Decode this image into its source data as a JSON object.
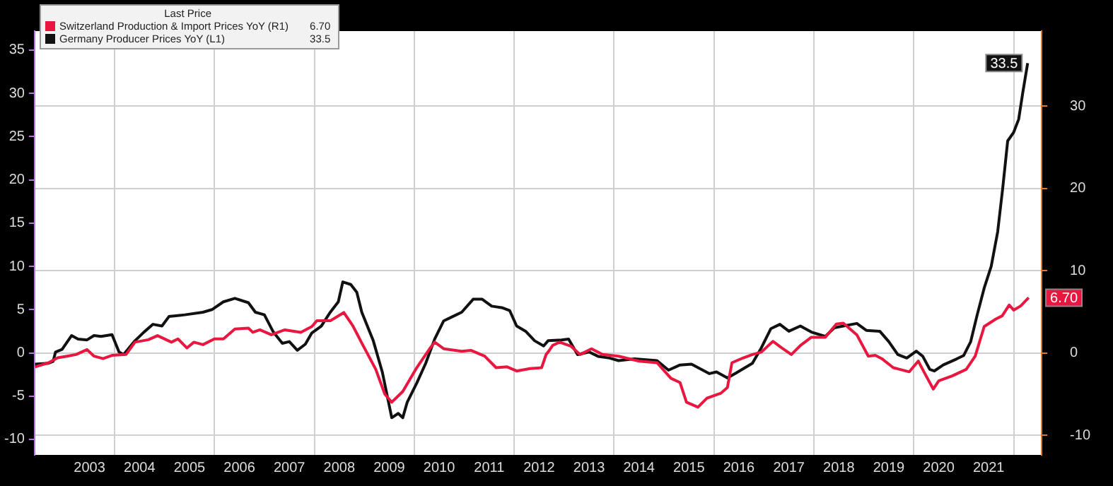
{
  "chart_data": {
    "type": "line",
    "legend_title": "Last Price",
    "legend": "top left",
    "grid": true,
    "marker": "none",
    "line_style": "solid",
    "xlim": [
      2002.4,
      2022.56
    ],
    "xticks": [
      {
        "value": 2003.5,
        "label": "2003"
      },
      {
        "value": 2004,
        "label": null
      },
      {
        "value": 2004.5,
        "label": "2004"
      },
      {
        "value": 2005.5,
        "label": "2005"
      },
      {
        "value": 2006,
        "label": null
      },
      {
        "value": 2006.5,
        "label": "2006"
      },
      {
        "value": 2007.5,
        "label": "2007"
      },
      {
        "value": 2008,
        "label": null
      },
      {
        "value": 2008.5,
        "label": "2008"
      },
      {
        "value": 2009.5,
        "label": "2009"
      },
      {
        "value": 2010,
        "label": null
      },
      {
        "value": 2010.5,
        "label": "2010"
      },
      {
        "value": 2011.5,
        "label": "2011"
      },
      {
        "value": 2012,
        "label": null
      },
      {
        "value": 2012.5,
        "label": "2012"
      },
      {
        "value": 2013.5,
        "label": "2013"
      },
      {
        "value": 2014,
        "label": null
      },
      {
        "value": 2014.5,
        "label": "2014"
      },
      {
        "value": 2015.5,
        "label": "2015"
      },
      {
        "value": 2016,
        "label": null
      },
      {
        "value": 2016.5,
        "label": "2016"
      },
      {
        "value": 2017.5,
        "label": "2017"
      },
      {
        "value": 2018,
        "label": null
      },
      {
        "value": 2018.5,
        "label": "2018"
      },
      {
        "value": 2019.5,
        "label": "2019"
      },
      {
        "value": 2020,
        "label": null
      },
      {
        "value": 2020.5,
        "label": "2020"
      },
      {
        "value": 2021.5,
        "label": "2021"
      },
      {
        "value": 2022,
        "label": null
      }
    ],
    "ylim": [
      -11.8,
      37.2
    ],
    "yticks": [
      -10,
      -5,
      0,
      5,
      10,
      15,
      20,
      25,
      30,
      35
    ],
    "y2lim": [
      -12.4,
      39.1
    ],
    "y2ticks": [
      -10,
      0,
      10,
      20,
      30
    ],
    "series": [
      {
        "name": "Switzerland Production & Import Prices YoY (R1)",
        "color": "#e8173f",
        "axis": "y2",
        "x": [
          2002.41,
          2002.68,
          2002.86,
          2003.05,
          2003.23,
          2003.45,
          2003.59,
          2003.77,
          2003.95,
          2004.23,
          2004.41,
          2004.68,
          2004.86,
          2005.14,
          2005.27,
          2005.45,
          2005.59,
          2005.77,
          2006.0,
          2006.18,
          2006.41,
          2006.68,
          2006.77,
          2006.91,
          2007.14,
          2007.41,
          2007.73,
          2007.95,
          2008.05,
          2008.32,
          2008.59,
          2008.77,
          2008.95,
          2009.23,
          2009.41,
          2009.55,
          2009.77,
          2010.05,
          2010.32,
          2010.41,
          2010.59,
          2010.95,
          2011.14,
          2011.41,
          2011.64,
          2011.86,
          2012.05,
          2012.32,
          2012.55,
          2012.64,
          2012.68,
          2012.77,
          2012.91,
          2013.14,
          2013.32,
          2013.55,
          2013.77,
          2014.09,
          2014.5,
          2014.86,
          2015.14,
          2015.32,
          2015.45,
          2015.68,
          2015.86,
          2016.14,
          2016.27,
          2016.36,
          2016.59,
          2016.77,
          2016.95,
          2017.18,
          2017.36,
          2017.55,
          2017.73,
          2017.95,
          2018.23,
          2018.45,
          2018.59,
          2018.86,
          2019.09,
          2019.23,
          2019.36,
          2019.59,
          2019.91,
          2020.09,
          2020.23,
          2020.39,
          2020.5,
          2020.77,
          2021.05,
          2021.23,
          2021.41,
          2021.64,
          2021.77,
          2021.91,
          2022.0,
          2022.14,
          2022.3
        ],
        "values": [
          -1.7,
          -1.2,
          -0.6,
          -0.4,
          -0.2,
          0.4,
          -0.4,
          -0.7,
          -0.3,
          -0.2,
          1.3,
          1.6,
          2.1,
          1.3,
          1.7,
          0.6,
          1.3,
          1.0,
          1.7,
          1.7,
          2.9,
          3.0,
          2.5,
          2.8,
          2.2,
          2.8,
          2.5,
          3.2,
          3.9,
          3.9,
          4.9,
          3.3,
          1.2,
          -2.0,
          -5.0,
          -6.0,
          -4.7,
          -1.8,
          0.6,
          1.3,
          0.5,
          0.2,
          0.3,
          -0.4,
          -1.8,
          -1.7,
          -2.2,
          -1.9,
          -1.8,
          -0.2,
          0.1,
          0.9,
          1.3,
          0.8,
          -0.2,
          0.5,
          -0.2,
          -0.4,
          -1.0,
          -1.2,
          -3.1,
          -3.6,
          -6.0,
          -6.6,
          -5.5,
          -4.9,
          -4.2,
          -1.2,
          -0.6,
          -0.2,
          0.1,
          1.4,
          0.6,
          -0.2,
          0.9,
          1.9,
          1.9,
          3.5,
          3.6,
          2.2,
          -0.4,
          -0.3,
          -0.7,
          -1.8,
          -2.3,
          -1.0,
          -2.6,
          -4.4,
          -3.4,
          -2.8,
          -2.0,
          -0.4,
          3.2,
          4.1,
          4.5,
          5.8,
          5.2,
          5.7,
          6.7
        ],
        "value_labels": [
          null,
          null,
          null,
          null,
          null,
          null,
          null,
          null,
          null,
          null,
          null,
          null,
          null,
          null,
          null,
          null,
          null,
          null,
          null,
          null,
          null,
          null,
          null,
          null,
          null,
          null,
          null,
          null,
          null,
          null,
          null,
          null,
          null,
          null,
          null,
          null,
          null,
          null,
          null,
          null,
          null,
          null,
          null,
          null,
          null,
          null,
          null,
          null,
          null,
          null,
          null,
          null,
          null,
          null,
          null,
          null,
          null,
          null,
          null,
          null,
          null,
          null,
          null,
          null,
          null,
          null,
          null,
          null,
          null,
          null,
          null,
          null,
          null,
          null,
          null,
          null,
          null,
          null,
          null,
          null,
          null,
          null,
          null,
          null,
          null,
          null,
          null,
          null,
          null,
          null,
          null,
          null,
          null,
          null,
          null,
          null,
          null,
          null,
          "6.70"
        ]
      },
      {
        "name": "Germany Producer Prices YoY (L1)",
        "color": "#111111",
        "axis": "y",
        "x": [
          2002.41,
          2002.68,
          2002.77,
          2002.82,
          2002.95,
          2003.14,
          2003.27,
          2003.45,
          2003.59,
          2003.73,
          2003.95,
          2004.09,
          2004.18,
          2004.41,
          2004.59,
          2004.77,
          2004.95,
          2005.09,
          2005.41,
          2005.77,
          2005.95,
          2006.18,
          2006.41,
          2006.68,
          2006.82,
          2007.0,
          2007.18,
          2007.36,
          2007.5,
          2007.66,
          2007.82,
          2007.95,
          2008.14,
          2008.32,
          2008.48,
          2008.57,
          2008.73,
          2008.85,
          2008.95,
          2009.18,
          2009.36,
          2009.55,
          2009.68,
          2009.77,
          2009.86,
          2010.05,
          2010.23,
          2010.41,
          2010.59,
          2010.77,
          2010.95,
          2011.18,
          2011.36,
          2011.55,
          2011.77,
          2011.91,
          2012.05,
          2012.23,
          2012.41,
          2012.59,
          2012.68,
          2012.95,
          2013.09,
          2013.27,
          2013.5,
          2013.68,
          2013.91,
          2014.09,
          2014.41,
          2014.86,
          2015.09,
          2015.32,
          2015.55,
          2015.91,
          2016.05,
          2016.27,
          2016.45,
          2016.77,
          2016.95,
          2017.14,
          2017.32,
          2017.5,
          2017.73,
          2017.95,
          2018.23,
          2018.41,
          2018.86,
          2019.05,
          2019.32,
          2019.5,
          2019.68,
          2019.86,
          2020.05,
          2020.18,
          2020.32,
          2020.41,
          2020.59,
          2020.86,
          2021.0,
          2021.14,
          2021.27,
          2021.41,
          2021.55,
          2021.68,
          2021.78,
          2021.88,
          2022.0,
          2022.1,
          2022.18,
          2022.28
        ],
        "values": [
          -1.3,
          -1.2,
          -1.0,
          0.1,
          0.4,
          2.0,
          1.6,
          1.5,
          2.0,
          1.9,
          2.1,
          0.1,
          -0.2,
          1.4,
          2.4,
          3.3,
          3.1,
          4.2,
          4.4,
          4.7,
          5.0,
          5.9,
          6.3,
          5.8,
          4.7,
          4.4,
          2.4,
          1.1,
          1.3,
          0.3,
          1.0,
          2.3,
          3.1,
          4.7,
          5.9,
          8.2,
          7.9,
          7.0,
          4.7,
          1.4,
          -2.2,
          -7.5,
          -7.0,
          -7.5,
          -5.7,
          -3.5,
          -1.2,
          1.6,
          3.7,
          4.2,
          4.7,
          6.2,
          6.2,
          5.4,
          5.2,
          4.9,
          3.1,
          2.5,
          1.4,
          0.8,
          1.4,
          1.5,
          1.6,
          -0.2,
          0.1,
          -0.4,
          -0.6,
          -0.9,
          -0.7,
          -0.9,
          -2.0,
          -1.4,
          -1.3,
          -2.4,
          -2.2,
          -2.9,
          -2.3,
          -1.2,
          0.6,
          2.8,
          3.3,
          2.5,
          3.1,
          2.4,
          1.9,
          2.9,
          3.4,
          2.6,
          2.5,
          1.3,
          -0.2,
          -0.6,
          0.2,
          -0.4,
          -1.9,
          -2.1,
          -1.4,
          -0.7,
          -0.3,
          1.3,
          4.4,
          7.5,
          10.0,
          14.0,
          19.0,
          24.5,
          25.5,
          27.0,
          30.0,
          33.5
        ],
        "value_labels": [
          null,
          null,
          null,
          null,
          null,
          null,
          null,
          null,
          null,
          null,
          null,
          null,
          null,
          null,
          null,
          null,
          null,
          null,
          null,
          null,
          null,
          null,
          null,
          null,
          null,
          null,
          null,
          null,
          null,
          null,
          null,
          null,
          null,
          null,
          null,
          null,
          null,
          null,
          null,
          null,
          null,
          null,
          null,
          null,
          null,
          null,
          null,
          null,
          null,
          null,
          null,
          null,
          null,
          null,
          null,
          null,
          null,
          null,
          null,
          null,
          null,
          null,
          null,
          null,
          null,
          null,
          null,
          null,
          null,
          null,
          null,
          null,
          null,
          null,
          null,
          null,
          null,
          null,
          null,
          null,
          null,
          null,
          null,
          null,
          null,
          null,
          null,
          null,
          null,
          null,
          null,
          null,
          null,
          null,
          null,
          null,
          null,
          null,
          null,
          null,
          null,
          null,
          null,
          null,
          null,
          null,
          null,
          null,
          null,
          "33.5"
        ]
      }
    ]
  }
}
